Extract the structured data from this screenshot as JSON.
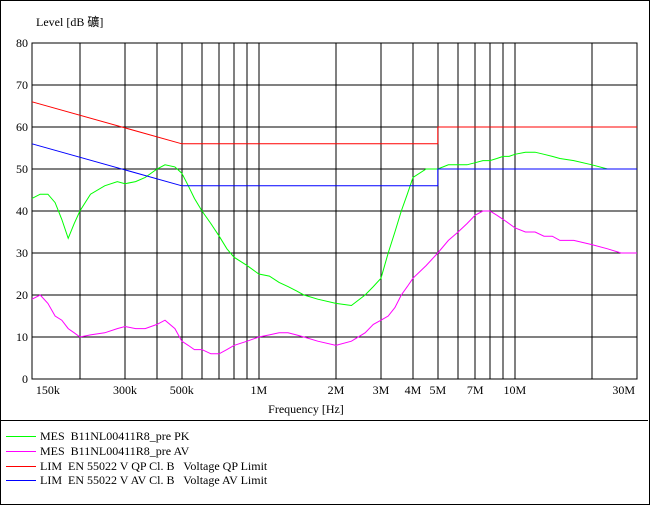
{
  "chart_data": {
    "type": "line",
    "ylabel": "Level [dB 礦]",
    "xlabel": "Frequency [Hz]",
    "x_scale": "log",
    "xlim": [
      130000,
      30000000
    ],
    "ylim": [
      0,
      80
    ],
    "yticks": [
      0,
      10,
      20,
      30,
      40,
      50,
      60,
      70,
      80
    ],
    "xticks": [
      {
        "label": "150k",
        "value": 150000
      },
      {
        "label": "300k",
        "value": 300000
      },
      {
        "label": "500k",
        "value": 500000
      },
      {
        "label": "1M",
        "value": 1000000
      },
      {
        "label": "2M",
        "value": 2000000
      },
      {
        "label": "3M",
        "value": 3000000
      },
      {
        "label": "4M",
        "value": 4000000
      },
      {
        "label": "5M",
        "value": 5000000
      },
      {
        "label": "7M",
        "value": 7000000
      },
      {
        "label": "10M",
        "value": 10000000
      },
      {
        "label": "30M",
        "value": 30000000
      }
    ],
    "grid": true,
    "series": [
      {
        "name": "MES  B11NL00411R8_pre PK",
        "color": "#00ff00",
        "x": [
          130000,
          140000,
          150000,
          160000,
          170000,
          180000,
          190000,
          200000,
          220000,
          250000,
          280000,
          300000,
          330000,
          360000,
          400000,
          430000,
          470000,
          500000,
          530000,
          560000,
          600000,
          650000,
          700000,
          750000,
          800000,
          900000,
          1000000,
          1100000,
          1200000,
          1300000,
          1400000,
          1500000,
          1700000,
          2000000,
          2300000,
          2600000,
          2800000,
          3000000,
          3200000,
          3400000,
          3600000,
          3800000,
          4000000,
          4500000,
          5000000,
          5500000,
          6000000,
          6500000,
          7000000,
          7500000,
          8000000,
          8500000,
          9000000,
          9500000,
          10000000,
          11000000,
          12000000,
          13000000,
          14000000,
          15000000,
          17000000,
          20000000,
          23000000,
          26000000,
          30000000
        ],
        "values": [
          43,
          44,
          44,
          42,
          38,
          33.5,
          37,
          40,
          44,
          46,
          47,
          46.5,
          47,
          48,
          50,
          51,
          50.5,
          49,
          46,
          43,
          40,
          37,
          34,
          31,
          29,
          27,
          25,
          24.5,
          23,
          22,
          21,
          20,
          19,
          18,
          17.5,
          20,
          22,
          24,
          30,
          35,
          40,
          44,
          48,
          50,
          50,
          51,
          51,
          51,
          51.5,
          52,
          52,
          52.5,
          53,
          53,
          53.5,
          54,
          54,
          53.5,
          53,
          52.5,
          52,
          51,
          50,
          50,
          50
        ]
      },
      {
        "name": "MES  B11NL00411R8_pre AV",
        "color": "#ff00ff",
        "x": [
          130000,
          140000,
          150000,
          160000,
          170000,
          180000,
          190000,
          200000,
          220000,
          250000,
          280000,
          300000,
          330000,
          360000,
          400000,
          430000,
          470000,
          500000,
          530000,
          560000,
          600000,
          650000,
          700000,
          750000,
          800000,
          900000,
          1000000,
          1100000,
          1200000,
          1300000,
          1400000,
          1500000,
          1700000,
          2000000,
          2300000,
          2600000,
          2800000,
          3000000,
          3200000,
          3400000,
          3600000,
          3800000,
          4000000,
          4500000,
          5000000,
          5500000,
          6000000,
          6500000,
          7000000,
          7500000,
          8000000,
          8500000,
          9000000,
          9500000,
          10000000,
          11000000,
          12000000,
          13000000,
          14000000,
          15000000,
          17000000,
          20000000,
          23000000,
          26000000,
          30000000
        ],
        "values": [
          19,
          20,
          18,
          15,
          14,
          12,
          11,
          10,
          10.5,
          11,
          12,
          12.5,
          12,
          12,
          13,
          14,
          12,
          9,
          8,
          7,
          7,
          6,
          6,
          7,
          8,
          9,
          10,
          10.5,
          11,
          11,
          10.5,
          10,
          9,
          8,
          9,
          11,
          13,
          14,
          15,
          17,
          20,
          22,
          24,
          27,
          30,
          33,
          35,
          37,
          39,
          40,
          40,
          39,
          38,
          37,
          36,
          35,
          35,
          34,
          34,
          33,
          33,
          32,
          31,
          30,
          30
        ]
      },
      {
        "name": "LIM  EN 55022 V QP Cl. B   Voltage QP Limit",
        "color": "#ff0000",
        "x": [
          130000,
          500000,
          5000000,
          5000000,
          30000000
        ],
        "values": [
          66,
          56,
          56,
          60,
          60
        ]
      },
      {
        "name": "LIM  EN 55022 V AV Cl. B   Voltage AV Limit",
        "color": "#0000ff",
        "x": [
          130000,
          500000,
          5000000,
          5000000,
          30000000
        ],
        "values": [
          56,
          46,
          46,
          50,
          50
        ]
      }
    ]
  }
}
